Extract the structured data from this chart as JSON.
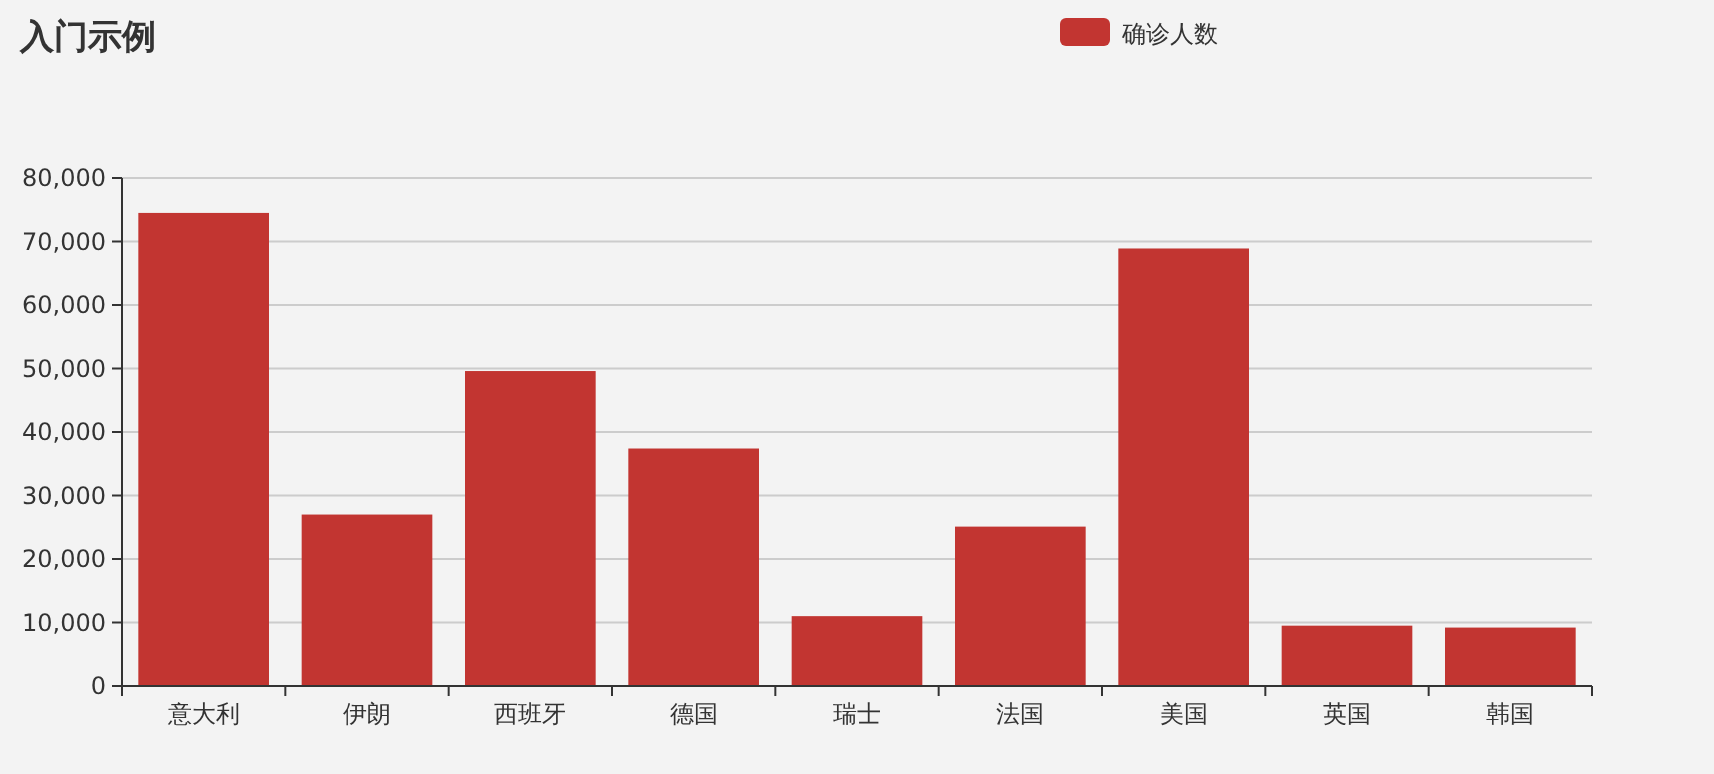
{
  "chart_data": {
    "type": "bar",
    "title": "入门示例",
    "categories": [
      "意大利",
      "伊朗",
      "西班牙",
      "德国",
      "瑞士",
      "法国",
      "美国",
      "英国",
      "韩国"
    ],
    "series": [
      {
        "name": "确诊人数",
        "color": "#c23531",
        "values": [
          74500,
          27000,
          49600,
          37400,
          11000,
          25100,
          68900,
          9500,
          9200
        ]
      }
    ],
    "ylim": [
      0,
      80000
    ],
    "yticks": [
      {
        "value": 0,
        "label": "0"
      },
      {
        "value": 10000,
        "label": "10,000"
      },
      {
        "value": 20000,
        "label": "20,000"
      },
      {
        "value": 30000,
        "label": "30,000"
      },
      {
        "value": 40000,
        "label": "40,000"
      },
      {
        "value": 50000,
        "label": "50,000"
      },
      {
        "value": 60000,
        "label": "60,000"
      },
      {
        "value": 70000,
        "label": "70,000"
      },
      {
        "value": 80000,
        "label": "80,000"
      }
    ],
    "grid": "y",
    "legend": "top right"
  }
}
